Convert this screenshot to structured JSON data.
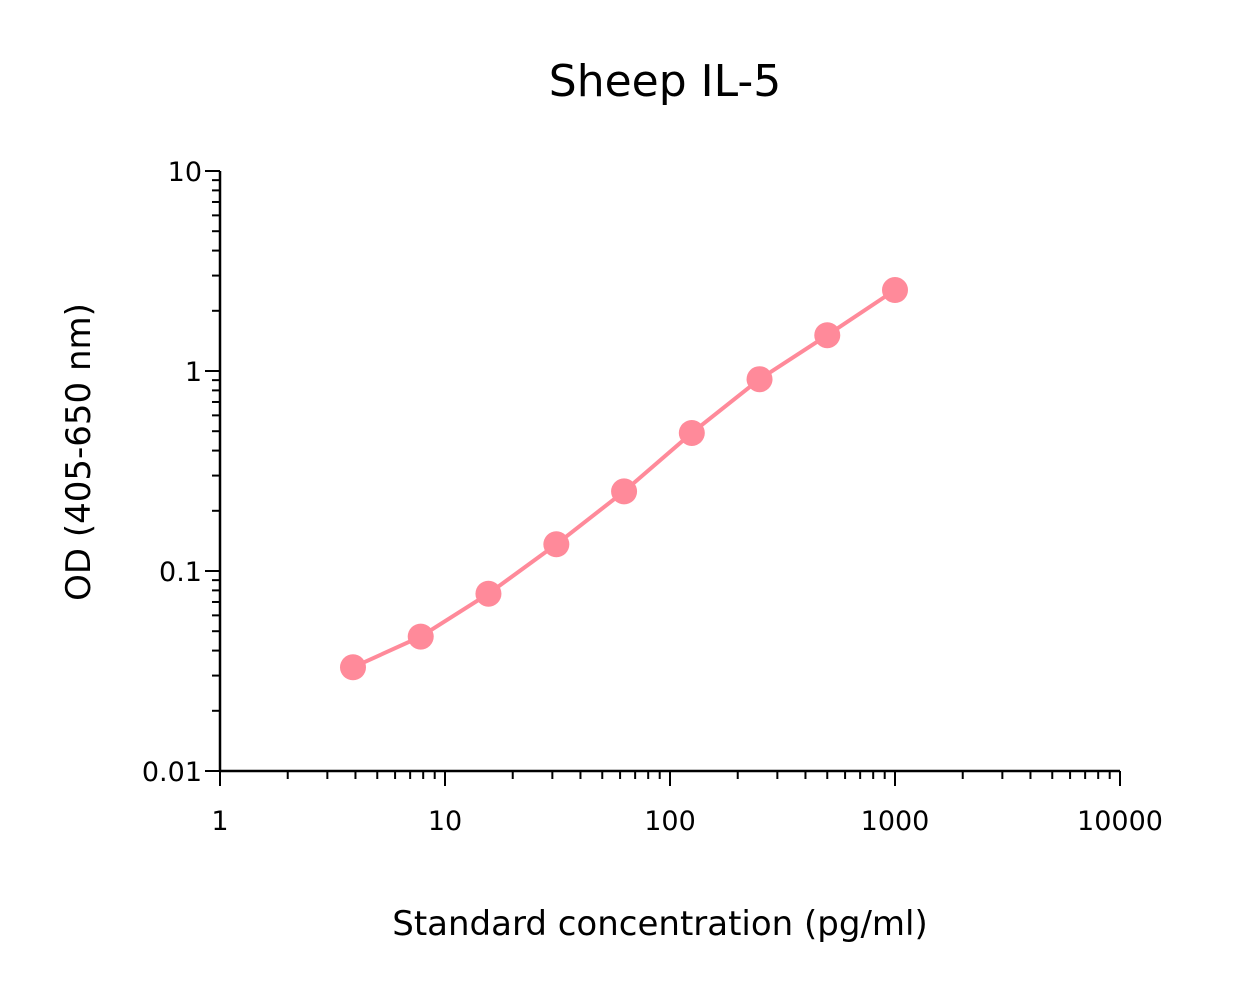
{
  "chart_data": {
    "type": "line",
    "title": "Sheep IL-5",
    "xlabel": "Standard concentration (pg/ml)",
    "ylabel": "OD (405-650 nm)",
    "xscale": "log",
    "yscale": "log",
    "xlim": [
      1,
      10000
    ],
    "ylim": [
      0.01,
      10
    ],
    "x_ticks": [
      "1",
      "10",
      "100",
      "1000",
      "10000"
    ],
    "y_ticks": [
      "0.01",
      "0.1",
      "1",
      "10"
    ],
    "grid": false,
    "color": "#FF8A9A",
    "series": [
      {
        "x": [
          3.9,
          7.8,
          15.6,
          31.25,
          62.5,
          125,
          250,
          500,
          1000
        ],
        "y": [
          0.033,
          0.047,
          0.077,
          0.136,
          0.25,
          0.49,
          0.91,
          1.51,
          2.54
        ]
      }
    ]
  }
}
